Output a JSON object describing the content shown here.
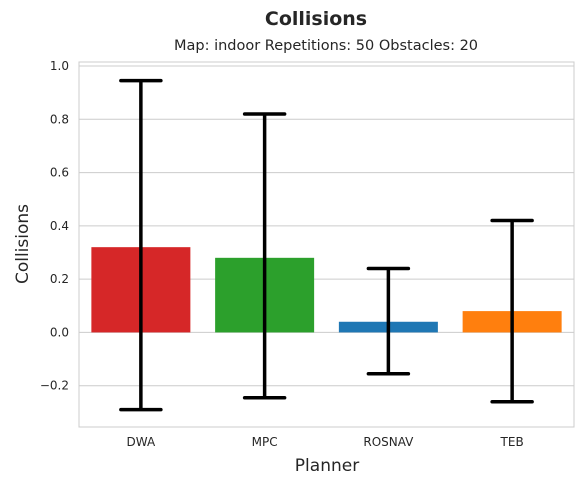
{
  "chart_data": {
    "type": "bar",
    "title": "Collisions",
    "subtitle": "Map: indoor Repetitions: 50 Obstacles: 20",
    "xlabel": "Planner",
    "ylabel": "Collisions",
    "categories": [
      "DWA",
      "MPC",
      "ROSNAV",
      "TEB"
    ],
    "values": [
      0.32,
      0.28,
      0.04,
      0.08
    ],
    "error_low": [
      -0.29,
      -0.245,
      -0.155,
      -0.26
    ],
    "error_high": [
      0.945,
      0.82,
      0.24,
      0.42
    ],
    "colors": [
      "#d62728",
      "#2ca02c",
      "#1f77b4",
      "#ff7f0e"
    ],
    "ylim": [
      -0.355,
      1.015
    ],
    "yticks": [
      -0.2,
      0.0,
      0.2,
      0.4,
      0.6,
      0.8,
      1.0
    ],
    "ytick_labels": [
      "−0.2",
      "0.0",
      "0.2",
      "0.4",
      "0.6",
      "0.8",
      "1.0"
    ],
    "grid": true
  }
}
